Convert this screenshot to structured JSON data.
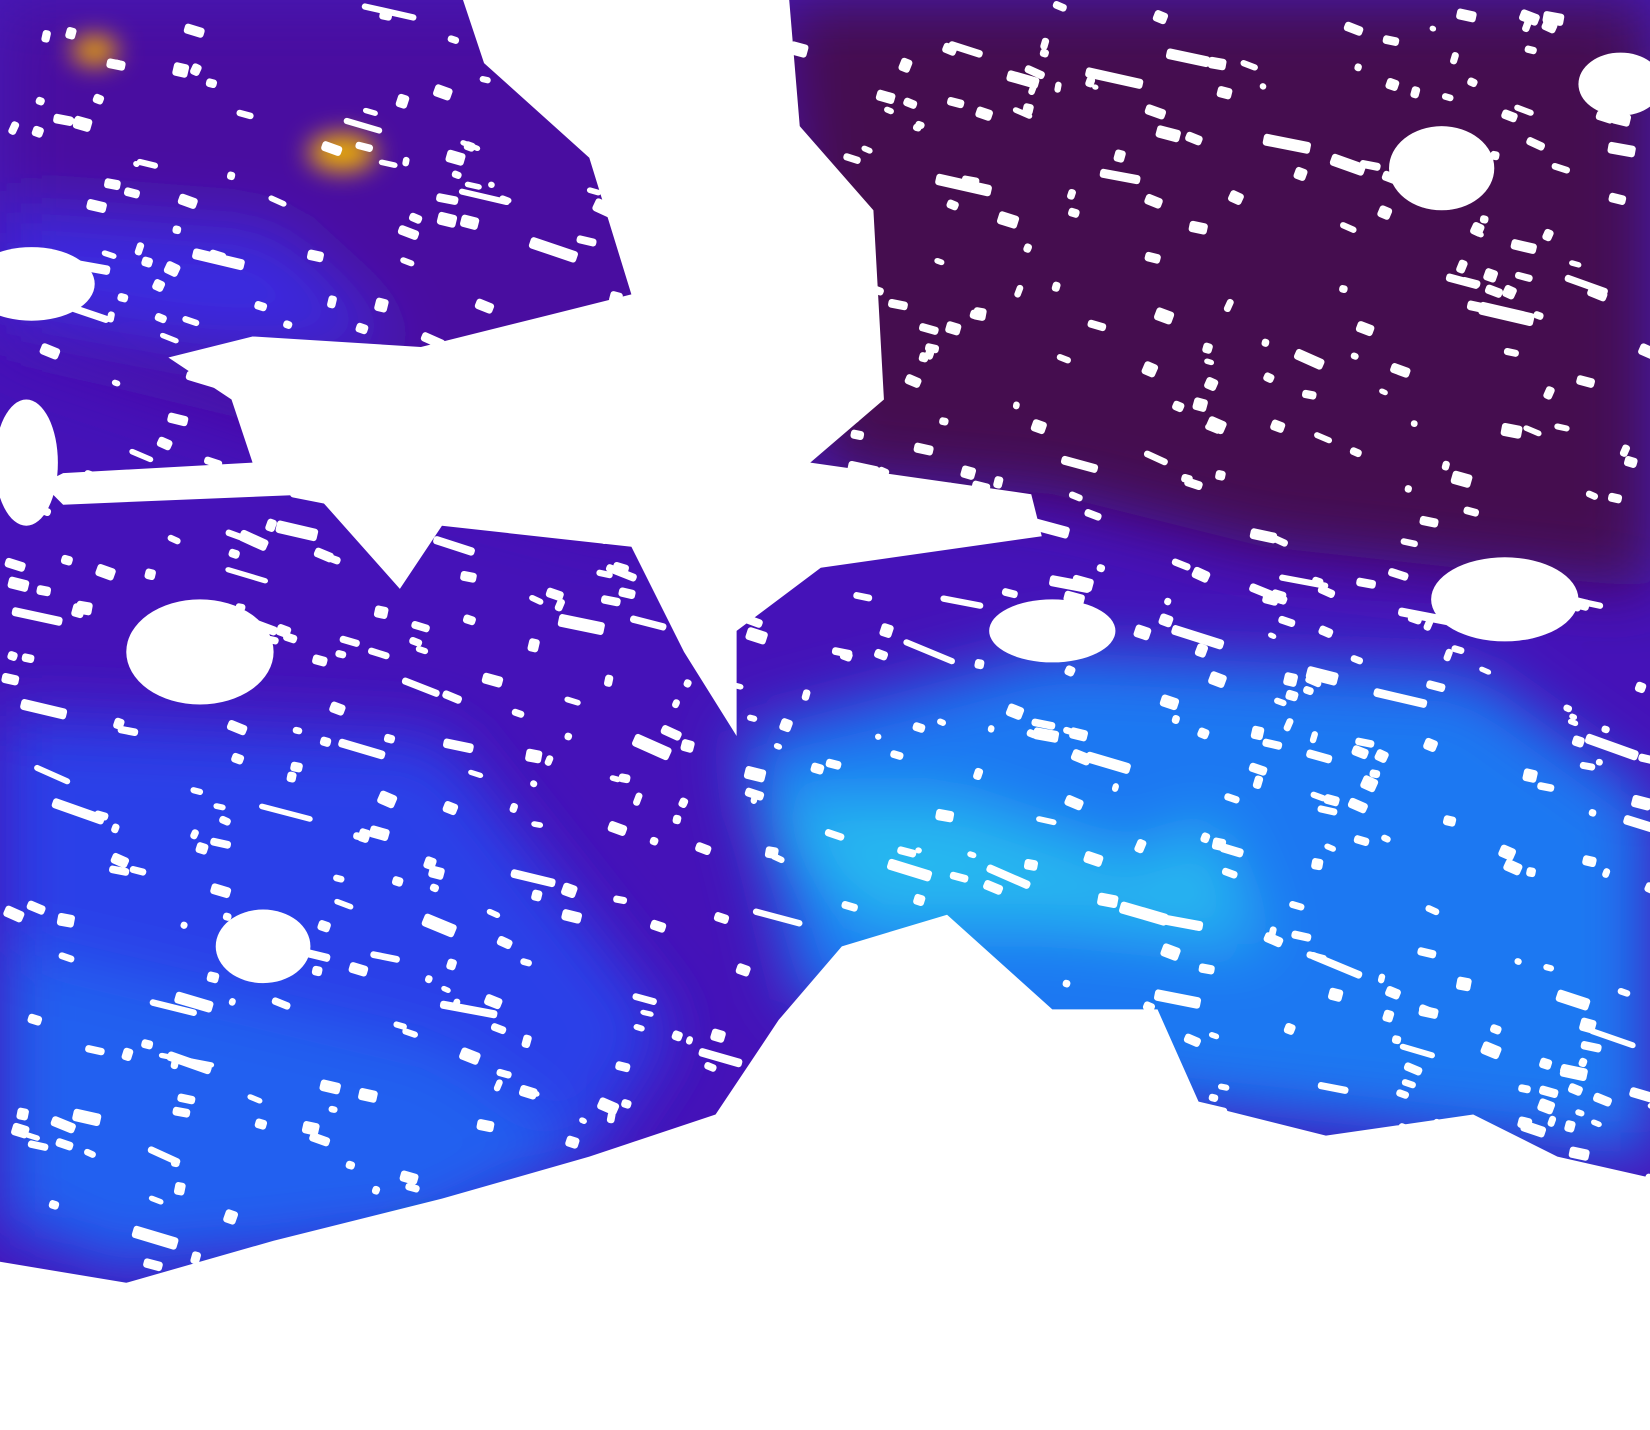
{
  "colormap": {
    "very_low": "#3d0a4f",
    "low": "#4a0f8f",
    "mid_low": "#3a10d0",
    "mid": "#1f5cf0",
    "mid_high": "#1fa8f5",
    "high": "#2fe0e0",
    "very_high": "#2fc04a",
    "peak": "#f0a800",
    "no_data": "#ffffff"
  }
}
